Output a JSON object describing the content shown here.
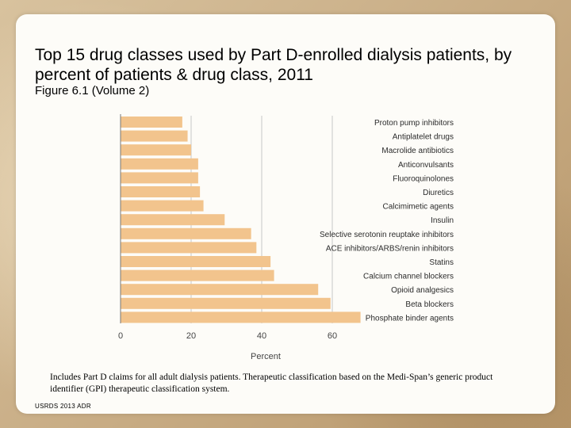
{
  "slide": {
    "title": "Top 15 drug classes used by Part D-enrolled dialysis patients, by percent of patients & drug class, 2011",
    "subtitle": "Figure 6.1 (Volume 2)",
    "caption": "Includes Part D claims for all adult dialysis patients. Therapeutic classification based on the Medi-Span’s generic product identifier (GPI) therapeutic classification system.",
    "source": "USRDS 2013 ADR"
  },
  "chart_data": {
    "type": "bar",
    "orientation": "horizontal",
    "title": "",
    "xlabel": "Percent",
    "ylabel": "",
    "xlim": [
      0,
      70
    ],
    "xticks": [
      0,
      20,
      40,
      60
    ],
    "categories": [
      "Proton pump inhibitors",
      "Antiplatelet drugs",
      "Macrolide antibiotics",
      "Anticonvulsants",
      "Fluoroquinolones",
      "Diuretics",
      "Calcimimetic agents",
      "Insulin",
      "Selective serotonin reuptake inhibitors",
      "ACE inhibitors/ARBS/renin inhibitors",
      "Statins",
      "Calcium channel blockers",
      "Opioid analgesics",
      "Beta blockers",
      "Phosphate binder agents"
    ],
    "values": [
      17.5,
      19,
      20,
      22,
      22,
      22.5,
      23.5,
      29.5,
      37,
      38.5,
      42.5,
      43.5,
      56,
      59.5,
      68
    ],
    "bar_color": "#f2c48d",
    "gridline_color": "#c8c8c8"
  }
}
